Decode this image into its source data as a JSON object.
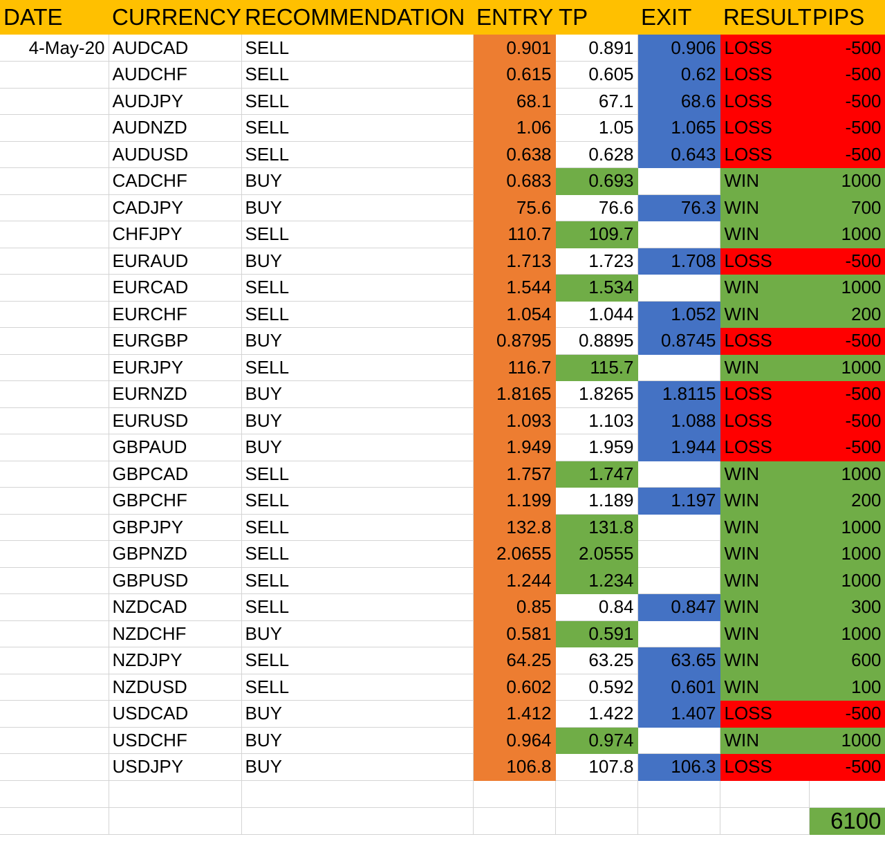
{
  "headers": {
    "date": "DATE",
    "currency": "CURRENCY",
    "recommendation": "RECOMMENDATION",
    "entry": "ENTRY",
    "tp": "TP",
    "exit": "EXIT",
    "result": "RESULT",
    "pips": "PIPS"
  },
  "colors": {
    "header": "#FFC000",
    "entry": "#ED7D31",
    "tp_hit": "#70AD47",
    "exit": "#4472C4",
    "loss": "#FF0000",
    "win": "#70AD47"
  },
  "rows": [
    {
      "date": "4-May-20",
      "currency": "AUDCAD",
      "rec": "SELL",
      "entry": "0.901",
      "tp": "0.891",
      "exit": "0.906",
      "result": "LOSS",
      "pips": "-500"
    },
    {
      "date": "",
      "currency": "AUDCHF",
      "rec": "SELL",
      "entry": "0.615",
      "tp": "0.605",
      "exit": "0.62",
      "result": "LOSS",
      "pips": "-500"
    },
    {
      "date": "",
      "currency": "AUDJPY",
      "rec": "SELL",
      "entry": "68.1",
      "tp": "67.1",
      "exit": "68.6",
      "result": "LOSS",
      "pips": "-500"
    },
    {
      "date": "",
      "currency": "AUDNZD",
      "rec": "SELL",
      "entry": "1.06",
      "tp": "1.05",
      "exit": "1.065",
      "result": "LOSS",
      "pips": "-500"
    },
    {
      "date": "",
      "currency": "AUDUSD",
      "rec": "SELL",
      "entry": "0.638",
      "tp": "0.628",
      "exit": "0.643",
      "result": "LOSS",
      "pips": "-500"
    },
    {
      "date": "",
      "currency": "CADCHF",
      "rec": "BUY",
      "entry": "0.683",
      "tp": "0.693",
      "exit": "",
      "result": "WIN",
      "pips": "1000"
    },
    {
      "date": "",
      "currency": "CADJPY",
      "rec": "BUY",
      "entry": "75.6",
      "tp": "76.6",
      "exit": "76.3",
      "result": "WIN",
      "pips": "700"
    },
    {
      "date": "",
      "currency": "CHFJPY",
      "rec": "SELL",
      "entry": "110.7",
      "tp": "109.7",
      "exit": "",
      "result": "WIN",
      "pips": "1000"
    },
    {
      "date": "",
      "currency": "EURAUD",
      "rec": "BUY",
      "entry": "1.713",
      "tp": "1.723",
      "exit": "1.708",
      "result": "LOSS",
      "pips": "-500"
    },
    {
      "date": "",
      "currency": "EURCAD",
      "rec": "SELL",
      "entry": "1.544",
      "tp": "1.534",
      "exit": "",
      "result": "WIN",
      "pips": "1000"
    },
    {
      "date": "",
      "currency": "EURCHF",
      "rec": "SELL",
      "entry": "1.054",
      "tp": "1.044",
      "exit": "1.052",
      "result": "WIN",
      "pips": "200"
    },
    {
      "date": "",
      "currency": "EURGBP",
      "rec": "BUY",
      "entry": "0.8795",
      "tp": "0.8895",
      "exit": "0.8745",
      "result": "LOSS",
      "pips": "-500"
    },
    {
      "date": "",
      "currency": "EURJPY",
      "rec": "SELL",
      "entry": "116.7",
      "tp": "115.7",
      "exit": "",
      "result": "WIN",
      "pips": "1000"
    },
    {
      "date": "",
      "currency": "EURNZD",
      "rec": "BUY",
      "entry": "1.8165",
      "tp": "1.8265",
      "exit": "1.8115",
      "result": "LOSS",
      "pips": "-500"
    },
    {
      "date": "",
      "currency": "EURUSD",
      "rec": "BUY",
      "entry": "1.093",
      "tp": "1.103",
      "exit": "1.088",
      "result": "LOSS",
      "pips": "-500"
    },
    {
      "date": "",
      "currency": "GBPAUD",
      "rec": "BUY",
      "entry": "1.949",
      "tp": "1.959",
      "exit": "1.944",
      "result": "LOSS",
      "pips": "-500"
    },
    {
      "date": "",
      "currency": "GBPCAD",
      "rec": "SELL",
      "entry": "1.757",
      "tp": "1.747",
      "exit": "",
      "result": "WIN",
      "pips": "1000"
    },
    {
      "date": "",
      "currency": "GBPCHF",
      "rec": "SELL",
      "entry": "1.199",
      "tp": "1.189",
      "exit": "1.197",
      "result": "WIN",
      "pips": "200"
    },
    {
      "date": "",
      "currency": "GBPJPY",
      "rec": "SELL",
      "entry": "132.8",
      "tp": "131.8",
      "exit": "",
      "result": "WIN",
      "pips": "1000"
    },
    {
      "date": "",
      "currency": "GBPNZD",
      "rec": "SELL",
      "entry": "2.0655",
      "tp": "2.0555",
      "exit": "",
      "result": "WIN",
      "pips": "1000"
    },
    {
      "date": "",
      "currency": "GBPUSD",
      "rec": "SELL",
      "entry": "1.244",
      "tp": "1.234",
      "exit": "",
      "result": "WIN",
      "pips": "1000"
    },
    {
      "date": "",
      "currency": "NZDCAD",
      "rec": "SELL",
      "entry": "0.85",
      "tp": "0.84",
      "exit": "0.847",
      "result": "WIN",
      "pips": "300"
    },
    {
      "date": "",
      "currency": "NZDCHF",
      "rec": "BUY",
      "entry": "0.581",
      "tp": "0.591",
      "exit": "",
      "result": "WIN",
      "pips": "1000"
    },
    {
      "date": "",
      "currency": "NZDJPY",
      "rec": "SELL",
      "entry": "64.25",
      "tp": "63.25",
      "exit": "63.65",
      "result": "WIN",
      "pips": "600"
    },
    {
      "date": "",
      "currency": "NZDUSD",
      "rec": "SELL",
      "entry": "0.602",
      "tp": "0.592",
      "exit": "0.601",
      "result": "WIN",
      "pips": "100"
    },
    {
      "date": "",
      "currency": "USDCAD",
      "rec": "BUY",
      "entry": "1.412",
      "tp": "1.422",
      "exit": "1.407",
      "result": "LOSS",
      "pips": "-500"
    },
    {
      "date": "",
      "currency": "USDCHF",
      "rec": "BUY",
      "entry": "0.964",
      "tp": "0.974",
      "exit": "",
      "result": "WIN",
      "pips": "1000"
    },
    {
      "date": "",
      "currency": "USDJPY",
      "rec": "BUY",
      "entry": "106.8",
      "tp": "107.8",
      "exit": "106.3",
      "result": "LOSS",
      "pips": "-500"
    }
  ],
  "total_pips": "6100"
}
